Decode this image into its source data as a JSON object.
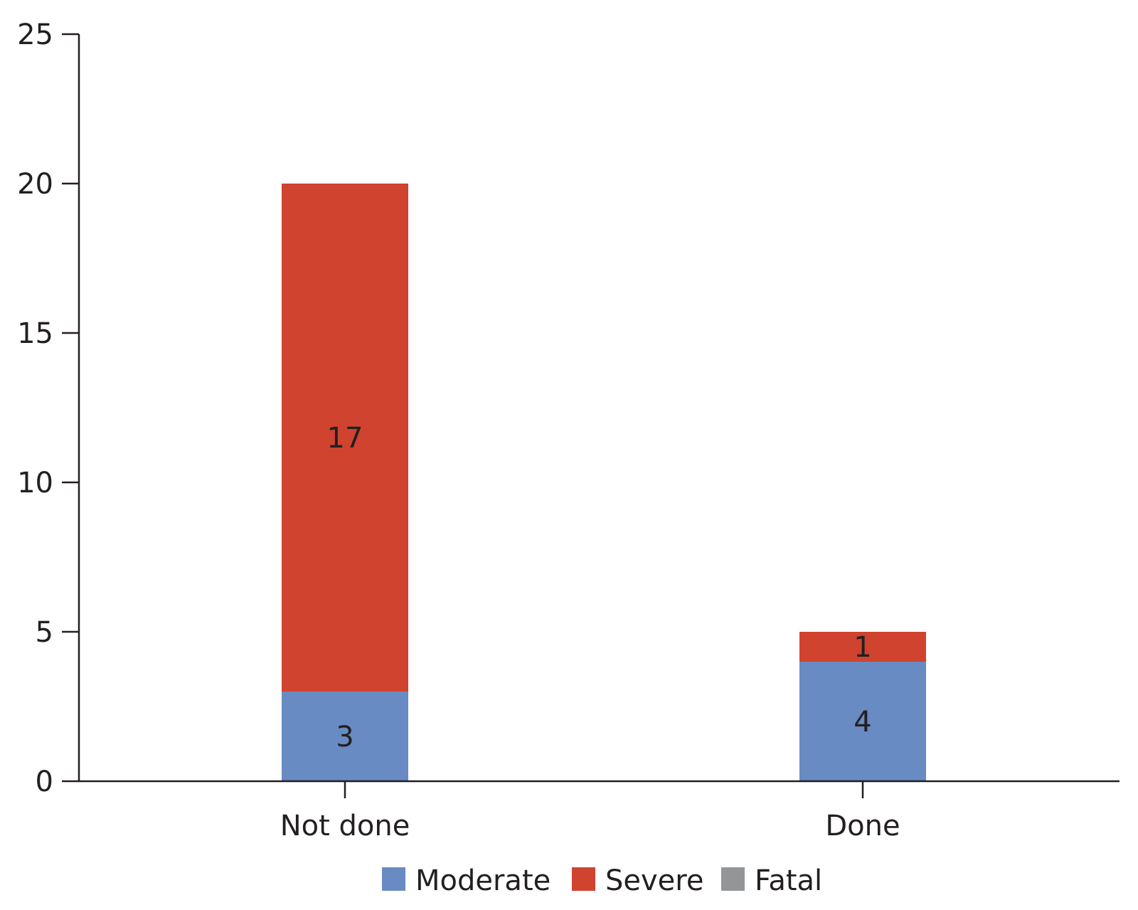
{
  "chart_data": {
    "type": "bar",
    "stacked": true,
    "categories": [
      "Not done",
      "Done"
    ],
    "series": [
      {
        "name": "Moderate",
        "values": [
          3,
          4
        ],
        "color": "#678bc2"
      },
      {
        "name": "Severe",
        "values": [
          17,
          1
        ],
        "color": "#d0432f"
      },
      {
        "name": "Fatal",
        "values": [
          0,
          0
        ],
        "color": "#939597"
      }
    ],
    "title": "",
    "xlabel": "",
    "ylabel": "",
    "ylim": [
      0,
      25
    ],
    "yticks": [
      0,
      5,
      10,
      15,
      20,
      25
    ],
    "grid": false,
    "legend": "bottom"
  }
}
